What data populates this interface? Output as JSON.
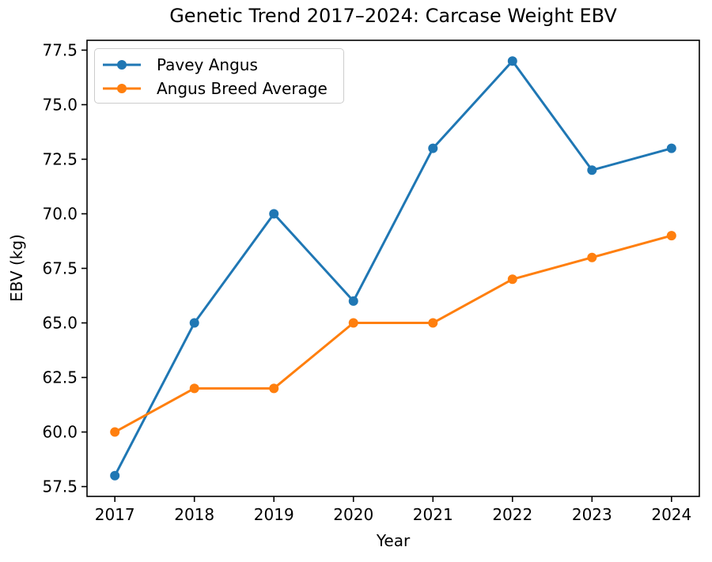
{
  "chart_data": {
    "type": "line",
    "title": "Genetic Trend 2017–2024: Carcase Weight EBV",
    "xlabel": "Year",
    "ylabel": "EBV (kg)",
    "categories": [
      "2017",
      "2018",
      "2019",
      "2020",
      "2021",
      "2022",
      "2023",
      "2024"
    ],
    "series": [
      {
        "name": "Pavey Angus",
        "color": "#1f77b4",
        "values": [
          58,
          65,
          70,
          66,
          73,
          77,
          72,
          73
        ]
      },
      {
        "name": "Angus Breed Average",
        "color": "#ff7f0e",
        "values": [
          60,
          62,
          62,
          65,
          65,
          67,
          68,
          69
        ]
      }
    ],
    "y_tick_labels": [
      "57.5",
      "60.0",
      "62.5",
      "65.0",
      "67.5",
      "70.0",
      "72.5",
      "75.0",
      "77.5"
    ],
    "y_tick_values": [
      57.5,
      60.0,
      62.5,
      65.0,
      67.5,
      70.0,
      72.5,
      75.0,
      77.5
    ],
    "xlim": [
      2016.65,
      2024.35
    ],
    "ylim": [
      57.05,
      77.95
    ],
    "legend_position": "upper left",
    "grid": false,
    "axis_color": "#000000"
  }
}
